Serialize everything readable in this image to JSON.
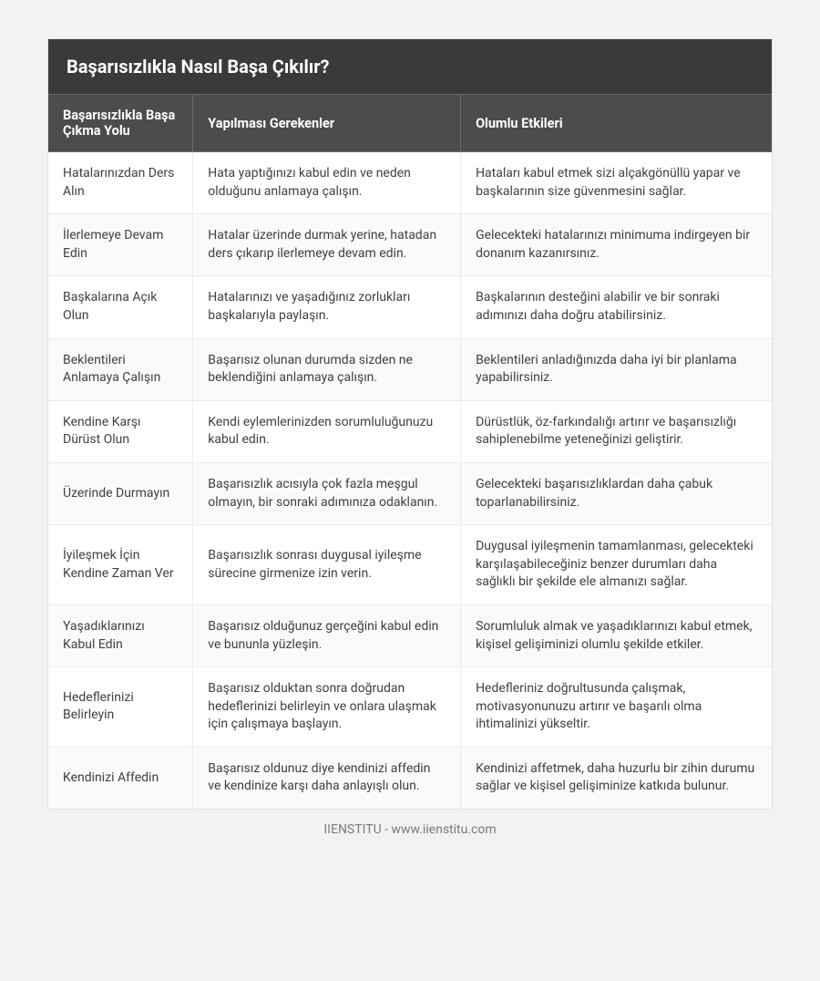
{
  "table": {
    "title": "Başarısızlıkla Nasıl Başa Çıkılır?",
    "columns": [
      "Başarısızlıkla Başa Çıkma Yolu",
      "Yapılması Gerekenler",
      "Olumlu Etkileri"
    ],
    "column_widths_pct": [
      20,
      37,
      43
    ],
    "title_bg_color": "#3a3a3a",
    "title_text_color": "#ffffff",
    "title_fontsize": 20,
    "header_bg_color": "#4c4c4c",
    "header_text_color": "#ffffff",
    "header_fontsize": 14.5,
    "cell_fontsize": 14,
    "cell_text_color": "#404040",
    "row_alt_bg": "#fafafa",
    "border_color": "#ececec",
    "page_bg_color": "#f2f2f2",
    "card_bg_color": "#ffffff",
    "rows": [
      [
        "Hatalarınızdan Ders Alın",
        "Hata yaptığınızı kabul edin ve neden olduğunu anlamaya çalışın.",
        "Hataları kabul etmek sizi alçakgönüllü yapar ve başkalarının size güvenmesini sağlar."
      ],
      [
        "İlerlemeye Devam Edin",
        "Hatalar üzerinde durmak yerine, hatadan ders çıkarıp ilerlemeye devam edin.",
        "Gelecekteki hatalarınızı minimuma indirgeyen bir donanım kazanırsınız."
      ],
      [
        "Başkalarına Açık Olun",
        "Hatalarınızı ve yaşadığınız zorlukları başkalarıyla paylaşın.",
        "Başkalarının desteğini alabilir ve bir sonraki adımınızı daha doğru atabilirsiniz."
      ],
      [
        "Beklentileri Anlamaya Çalışın",
        "Başarısız olunan durumda sizden ne beklendiğini anlamaya çalışın.",
        "Beklentileri anladığınızda daha iyi bir planlama yapabilirsiniz."
      ],
      [
        "Kendine Karşı Dürüst Olun",
        "Kendi eylemlerinizden sorumluluğunuzu kabul edin.",
        "Dürüstlük, öz-farkındalığı artırır ve başarısızlığı sahiplenebilme yeteneğinizi geliştirir."
      ],
      [
        "Üzerinde Durmayın",
        "Başarısızlık acısıyla çok fazla meşgul olmayın, bir sonraki adımınıza odaklanın.",
        "Gelecekteki başarısızlıklardan daha çabuk toparlanabilirsiniz."
      ],
      [
        "İyileşmek İçin Kendine Zaman Ver",
        "Başarısızlık sonrası duygusal iyileşme sürecine girmenize izin verin.",
        "Duygusal iyileşmenin tamamlanması, gelecekteki karşılaşabileceğiniz benzer durumları daha sağlıklı bir şekilde ele almanızı sağlar."
      ],
      [
        "Yaşadıklarınızı Kabul Edin",
        "Başarısız olduğunuz gerçeğini kabul edin ve bununla yüzleşin.",
        "Sorumluluk almak ve yaşadıklarınızı kabul etmek, kişisel gelişiminizi olumlu şekilde etkiler."
      ],
      [
        "Hedeflerinizi Belirleyin",
        "Başarısız olduktan sonra doğrudan hedeflerinizi belirleyin ve onlara ulaşmak için çalışmaya başlayın.",
        "Hedefleriniz doğrultusunda çalışmak, motivasyonunuzu artırır ve başarılı olma ihtimalinizi yükseltir."
      ],
      [
        "Kendinizi Affedin",
        "Başarısız oldunuz diye kendinizi affedin ve kendinize karşı daha anlayışlı olun.",
        "Kendinizi affetmek, daha huzurlu bir zihin durumu sağlar ve kişisel gelişiminize katkıda bulunur."
      ]
    ]
  },
  "footer": {
    "text": "IIENSTITU - www.iienstitu.com",
    "text_color": "#7a7a7a",
    "fontsize": 14
  }
}
